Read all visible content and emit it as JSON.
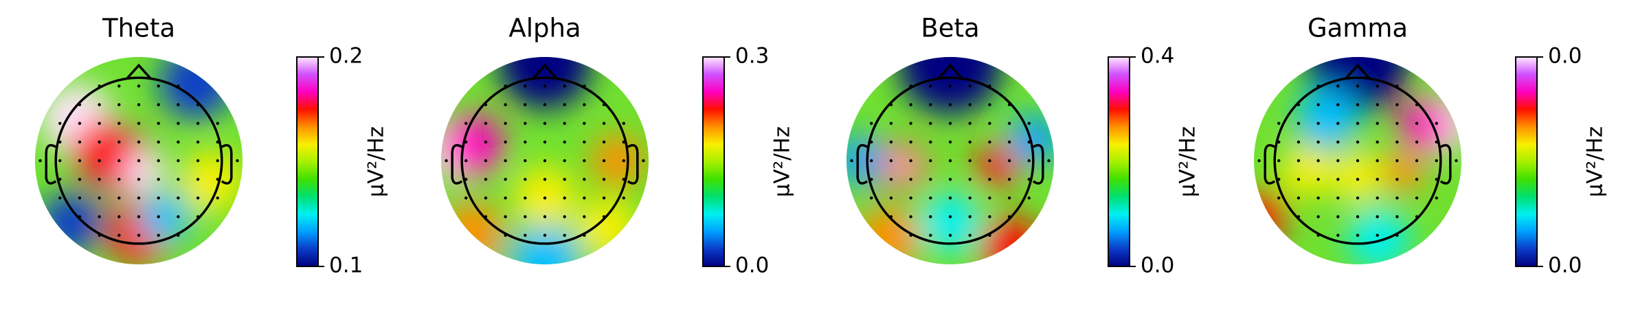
{
  "chart_data": [
    {
      "type": "topomap",
      "title": "Theta",
      "ylim": [
        0.1,
        0.2
      ],
      "yticks": [
        0.1,
        0.2
      ],
      "ylabel": "µV²/Hz"
    },
    {
      "type": "topomap",
      "title": "Alpha",
      "ylim": [
        0,
        0.3
      ],
      "yticks": [
        {
          "value": 0,
          "label": "0.0"
        },
        0.3
      ],
      "ylabel": "µV²/Hz"
    },
    {
      "type": "topomap",
      "title": "Beta",
      "ylim": [
        0,
        0.4
      ],
      "yticks": [
        {
          "value": 0,
          "label": "0.0"
        },
        0.4
      ],
      "ylabel": "µV²/Hz"
    },
    {
      "type": "topomap",
      "title": "Gamma",
      "ylim": [
        0,
        0.04
      ],
      "yticks": [
        {
          "value": 0,
          "label": "0.0"
        },
        {
          "value": 0.04,
          "label": "0.0"
        }
      ],
      "ylabel": "µV²/Hz"
    }
  ],
  "colormap": [
    "#000080",
    "#0a3cc8",
    "#00a0ff",
    "#00f0f0",
    "#00e070",
    "#40e000",
    "#a8f000",
    "#f8f000",
    "#ff9000",
    "#ff1000",
    "#ff00c0",
    "#d050ff",
    "#ffe8ff"
  ]
}
